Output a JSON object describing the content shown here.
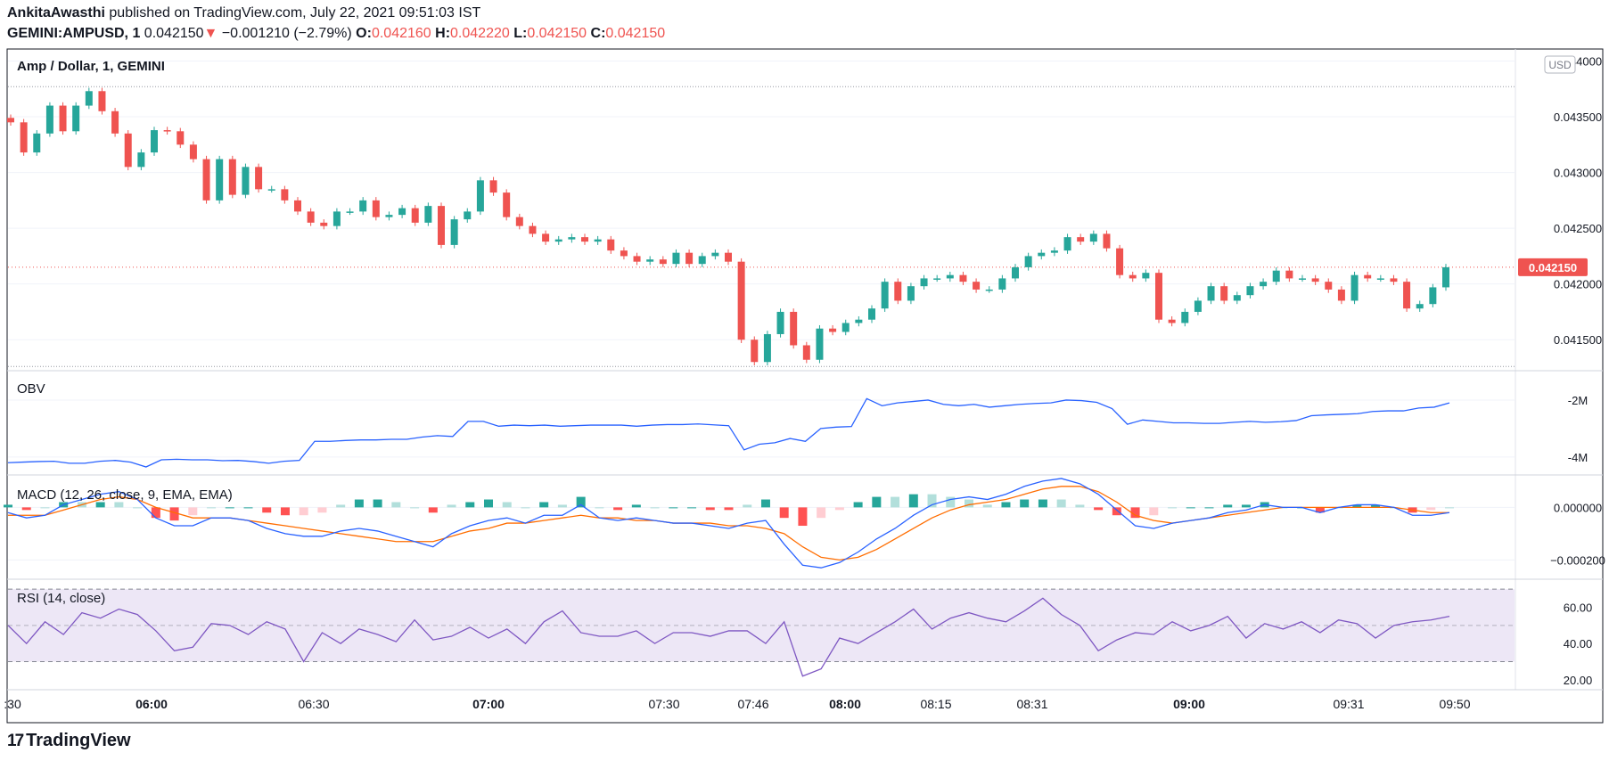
{
  "header": {
    "author": "AnkitaAwasthi",
    "published": "published on TradingView.com, July 22, 2021 09:51:03 IST",
    "symbol": "GEMINI:AMPUSD, 1",
    "last": "0.042150",
    "change_arrow": "▼",
    "change": "−0.001210 (−2.79%)",
    "o_label": "O:",
    "o": "0.042160",
    "h_label": "H:",
    "h": "0.042220",
    "l_label": "L:",
    "l": "0.042150",
    "c_label": "C:",
    "c": "0.042150"
  },
  "brand": {
    "name": "TradingView"
  },
  "colors": {
    "up": "#26a69a",
    "down": "#ef5350",
    "obv": "#2962ff",
    "macd": "#2962ff",
    "signal": "#ff6d00",
    "rsi": "#7e57c2",
    "rsi_band": "#ede7f6",
    "text": "#131722",
    "grid": "#f0f3fa"
  },
  "chart_data": [
    {
      "type": "candlestick",
      "title": "Amp / Dollar, 1, GEMINI",
      "currency_label": "USD",
      "last_price_label": "0.042150",
      "last_price": 0.04215,
      "ylim": [
        0.04123,
        0.0441
      ],
      "yticks": [
        "0.044000",
        "0.043500",
        "0.043000",
        "0.042500",
        "0.042000",
        "0.041500"
      ],
      "ytick_values": [
        0.044,
        0.0435,
        0.043,
        0.0425,
        0.042,
        0.0415
      ],
      "high_line": 0.04377,
      "low_line": 0.04126,
      "xticks": [
        ":30",
        "06:00",
        "06:30",
        "07:00",
        "07:30",
        "07:46",
        "08:00",
        "08:15",
        "08:31",
        "09:00",
        "09:31",
        "09:50"
      ],
      "xticks_bold": [
        "06:00",
        "07:00",
        "08:00",
        "09:00"
      ],
      "close_path": [
        0.04345,
        0.04318,
        0.04335,
        0.0436,
        0.04337,
        0.0436,
        0.04373,
        0.04355,
        0.04335,
        0.04305,
        0.04318,
        0.04338,
        0.04337,
        0.04325,
        0.04312,
        0.04275,
        0.04312,
        0.0428,
        0.04305,
        0.04285,
        0.04285,
        0.04275,
        0.04265,
        0.04255,
        0.04252,
        0.04265,
        0.04265,
        0.04275,
        0.0426,
        0.04262,
        0.04268,
        0.04255,
        0.0427,
        0.04235,
        0.04258,
        0.04265,
        0.04293,
        0.04282,
        0.0426,
        0.04252,
        0.04245,
        0.04238,
        0.0424,
        0.04242,
        0.04238,
        0.0424,
        0.0423,
        0.04225,
        0.0422,
        0.04222,
        0.04218,
        0.04228,
        0.04218,
        0.04225,
        0.04228,
        0.0422,
        0.0415,
        0.0413,
        0.04155,
        0.04175,
        0.04145,
        0.04132,
        0.0416,
        0.04157,
        0.04165,
        0.04168,
        0.04178,
        0.04202,
        0.04185,
        0.04198,
        0.04205,
        0.04205,
        0.04208,
        0.04202,
        0.04195,
        0.04195,
        0.04205,
        0.04215,
        0.04225,
        0.04228,
        0.0423,
        0.04242,
        0.04238,
        0.04245,
        0.04232,
        0.04208,
        0.04205,
        0.0421,
        0.04168,
        0.04165,
        0.04175,
        0.04185,
        0.04198,
        0.04185,
        0.0419,
        0.04198,
        0.04202,
        0.04212,
        0.04205,
        0.04205,
        0.04202,
        0.04195,
        0.04185,
        0.04208,
        0.04205,
        0.04205,
        0.04202,
        0.04178,
        0.04182,
        0.04197,
        0.04215
      ]
    },
    {
      "type": "line",
      "title": "OBV",
      "yticks": [
        "-2M",
        "-4M"
      ],
      "ytick_values": [
        -2000000,
        -4000000
      ],
      "ylim": [
        -4600000,
        -1000000
      ],
      "series": [
        {
          "values": [
            -4.2,
            -4.18,
            -4.16,
            -4.15,
            -4.22,
            -4.22,
            -4.15,
            -4.12,
            -4.18,
            -4.35,
            -4.1,
            -4.08,
            -4.1,
            -4.1,
            -4.13,
            -4.12,
            -4.16,
            -4.22,
            -4.15,
            -4.12,
            -3.45,
            -3.45,
            -3.42,
            -3.4,
            -3.4,
            -3.38,
            -3.38,
            -3.3,
            -3.25,
            -3.28,
            -2.75,
            -2.75,
            -2.92,
            -2.88,
            -2.9,
            -2.88,
            -2.92,
            -2.9,
            -2.88,
            -2.88,
            -2.88,
            -2.92,
            -2.88,
            -2.86,
            -2.86,
            -2.84,
            -2.87,
            -2.9,
            -3.75,
            -3.55,
            -3.5,
            -3.35,
            -3.45,
            -3.0,
            -2.95,
            -2.93,
            -1.95,
            -2.2,
            -2.1,
            -2.05,
            -2.0,
            -2.15,
            -2.2,
            -2.15,
            -2.25,
            -2.2,
            -2.15,
            -2.12,
            -2.1,
            -2.0,
            -2.02,
            -2.08,
            -2.3,
            -2.85,
            -2.7,
            -2.75,
            -2.8,
            -2.8,
            -2.82,
            -2.82,
            -2.78,
            -2.75,
            -2.78,
            -2.76,
            -2.72,
            -2.55,
            -2.52,
            -2.5,
            -2.48,
            -2.4,
            -2.38,
            -2.38,
            -2.28,
            -2.25,
            -2.1
          ]
        }
      ]
    },
    {
      "type": "line",
      "title": "MACD (12, 26, close, 9, EMA, EMA)",
      "yticks": [
        "0.000000",
        "−0.000200"
      ],
      "ytick_values": [
        0,
        -0.0002
      ],
      "ylim": [
        -0.00027,
        0.00012
      ],
      "series": [
        {
          "name": "MACD",
          "values": [
            -2e-05,
            -4e-05,
            -3e-05,
            1e-05,
            3e-05,
            5e-05,
            6e-05,
            3e-05,
            -4e-05,
            -7e-05,
            -7e-05,
            -4e-05,
            -4e-05,
            -5e-05,
            -8e-05,
            -0.0001,
            -0.00011,
            -0.00011,
            -9e-05,
            -8e-05,
            -9e-05,
            -0.00011,
            -0.00013,
            -0.00015,
            -0.0001,
            -7e-05,
            -5e-05,
            -4e-05,
            -6e-05,
            -3e-05,
            -3e-05,
            1e-05,
            -4e-05,
            -5e-05,
            -4e-05,
            -5e-05,
            -6e-05,
            -6e-05,
            -7e-05,
            -8e-05,
            -6e-05,
            -5e-05,
            -0.00014,
            -0.00022,
            -0.00023,
            -0.00021,
            -0.00017,
            -0.00012,
            -8e-05,
            -3e-05,
            1e-05,
            3e-05,
            4e-05,
            3e-05,
            5e-05,
            8e-05,
            0.0001,
            0.00011,
            9e-05,
            5e-05,
            -1e-05,
            -7e-05,
            -8e-05,
            -6e-05,
            -5e-05,
            -4e-05,
            -2e-05,
            -1e-05,
            1e-05,
            0.0,
            0.0,
            -2e-05,
            0.0,
            1e-05,
            1e-05,
            0.0,
            -3e-05,
            -3e-05,
            -2e-05
          ]
        },
        {
          "name": "Signal",
          "values": [
            -3e-05,
            -3e-05,
            -3e-05,
            -1e-05,
            1e-05,
            3e-05,
            4e-05,
            3e-05,
            0.0,
            -2e-05,
            -4e-05,
            -4e-05,
            -4e-05,
            -5e-05,
            -6e-05,
            -7e-05,
            -8e-05,
            -9e-05,
            -0.0001,
            -0.00011,
            -0.00012,
            -0.00013,
            -0.00013,
            -0.00013,
            -0.00011,
            -9e-05,
            -8e-05,
            -6e-05,
            -6e-05,
            -5e-05,
            -4e-05,
            -3e-05,
            -4e-05,
            -4e-05,
            -5e-05,
            -5e-05,
            -6e-05,
            -6e-05,
            -6e-05,
            -7e-05,
            -7e-05,
            -8e-05,
            -0.0001,
            -0.00015,
            -0.00019,
            -0.0002,
            -0.00019,
            -0.00016,
            -0.00012,
            -8e-05,
            -4e-05,
            -1e-05,
            1e-05,
            2e-05,
            3e-05,
            5e-05,
            7e-05,
            8e-05,
            8e-05,
            6e-05,
            2e-05,
            -3e-05,
            -5e-05,
            -6e-05,
            -5e-05,
            -4e-05,
            -3e-05,
            -2e-05,
            -1e-05,
            0.0,
            0.0,
            0.0,
            0.0,
            0.0,
            0.0,
            0.0,
            -1e-05,
            -2e-05,
            -2e-05
          ]
        }
      ]
    },
    {
      "type": "line",
      "title": "RSI (14, close)",
      "yticks": [
        "60.00",
        "40.00",
        "20.00"
      ],
      "ytick_values": [
        60,
        40,
        20
      ],
      "ylim": [
        15,
        75
      ],
      "band": [
        30,
        70
      ],
      "midline": 50,
      "series": [
        {
          "values": [
            50,
            40,
            52,
            45,
            57,
            54,
            59,
            56,
            47,
            36,
            38,
            51,
            50,
            45,
            52,
            48,
            30,
            46,
            40,
            48,
            45,
            41,
            53,
            42,
            44,
            49,
            43,
            48,
            40,
            52,
            58,
            46,
            44,
            44,
            47,
            40,
            46,
            46,
            44,
            47,
            47,
            40,
            52,
            22,
            26,
            43,
            40,
            46,
            52,
            59,
            48,
            54,
            57,
            54,
            52,
            58,
            65,
            56,
            50,
            36,
            42,
            46,
            45,
            52,
            47,
            50,
            55,
            43,
            51,
            48,
            52,
            46,
            53,
            51,
            43,
            50,
            52,
            53,
            55
          ]
        }
      ]
    }
  ]
}
